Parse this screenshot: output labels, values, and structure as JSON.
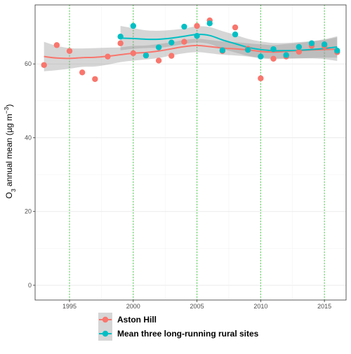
{
  "chart_data": {
    "type": "scatter",
    "title": "",
    "xlabel": "",
    "ylabel": {
      "base": "O",
      "base_sub": "3",
      "middle": " annual mean (µg m",
      "exp": "−3",
      "end": ")"
    },
    "xlim": [
      1992.3,
      2016.7
    ],
    "ylim": [
      -4,
      76
    ],
    "x_ticks": [
      1995,
      2000,
      2005,
      2010,
      2015
    ],
    "x_tick_labels": [
      "1995",
      "2000",
      "2005",
      "2010",
      "2015"
    ],
    "y_ticks": [
      0,
      20,
      40,
      60
    ],
    "y_tick_labels": [
      "0",
      "20",
      "40",
      "60"
    ],
    "vertical_reference_lines": [
      1995,
      2000,
      2005,
      2010,
      2015
    ],
    "grid": true,
    "legend_position": "bottom",
    "series": [
      {
        "name": "Aston Hill",
        "color": "#F8766D",
        "x": [
          1993,
          1994,
          1995,
          1996,
          1997,
          1998,
          1999,
          2000,
          2001,
          2002,
          2003,
          2004,
          2005,
          2006,
          2007,
          2008,
          2009,
          2010,
          2011,
          2012,
          2013,
          2014,
          2015,
          2016
        ],
        "y": [
          59.7,
          65.1,
          63.5,
          57.7,
          55.9,
          62.0,
          65.6,
          62.9,
          62.3,
          60.9,
          62.2,
          66.0,
          70.3,
          71.8,
          63.5,
          69.9,
          64.1,
          56.1,
          61.4,
          62.0,
          63.3,
          64.9,
          64.8,
          63.2
        ],
        "smooth_y": [
          62.0,
          61.6,
          61.5,
          61.7,
          61.8,
          62.1,
          62.5,
          62.9,
          63.1,
          63.5,
          64.1,
          64.7,
          65.0,
          64.7,
          64.3,
          64.1,
          63.8,
          63.4,
          63.2,
          63.4,
          63.6,
          63.8,
          63.9,
          64.0
        ],
        "ci_halfwidth": [
          4.0,
          3.3,
          2.8,
          2.5,
          2.5,
          2.3,
          2.0,
          2.0,
          1.9,
          1.9,
          1.8,
          1.8,
          1.8,
          1.8,
          1.8,
          1.8,
          1.8,
          1.9,
          1.9,
          2.0,
          2.1,
          2.3,
          2.6,
          3.2
        ]
      },
      {
        "name": "Mean three long-running rural sites",
        "color": "#00BFC4",
        "x": [
          1999,
          2000,
          2001,
          2002,
          2003,
          2004,
          2005,
          2006,
          2007,
          2008,
          2009,
          2010,
          2011,
          2012,
          2013,
          2014,
          2015,
          2016
        ],
        "y": [
          67.4,
          70.3,
          62.3,
          64.5,
          65.8,
          70.1,
          67.6,
          71.0,
          63.7,
          68.0,
          63.8,
          62.0,
          64.0,
          62.4,
          64.6,
          65.6,
          65.3,
          63.6
        ],
        "smooth_y": [
          67.0,
          66.9,
          66.7,
          66.7,
          67.0,
          67.5,
          68.0,
          67.7,
          66.5,
          65.5,
          64.5,
          63.9,
          63.6,
          63.6,
          63.7,
          63.9,
          64.2,
          64.6
        ],
        "ci_halfwidth": [
          3.3,
          2.8,
          2.4,
          2.3,
          2.2,
          2.1,
          2.2,
          2.3,
          2.4,
          2.4,
          2.3,
          2.2,
          2.1,
          2.1,
          2.2,
          2.3,
          2.5,
          2.9
        ]
      }
    ]
  }
}
